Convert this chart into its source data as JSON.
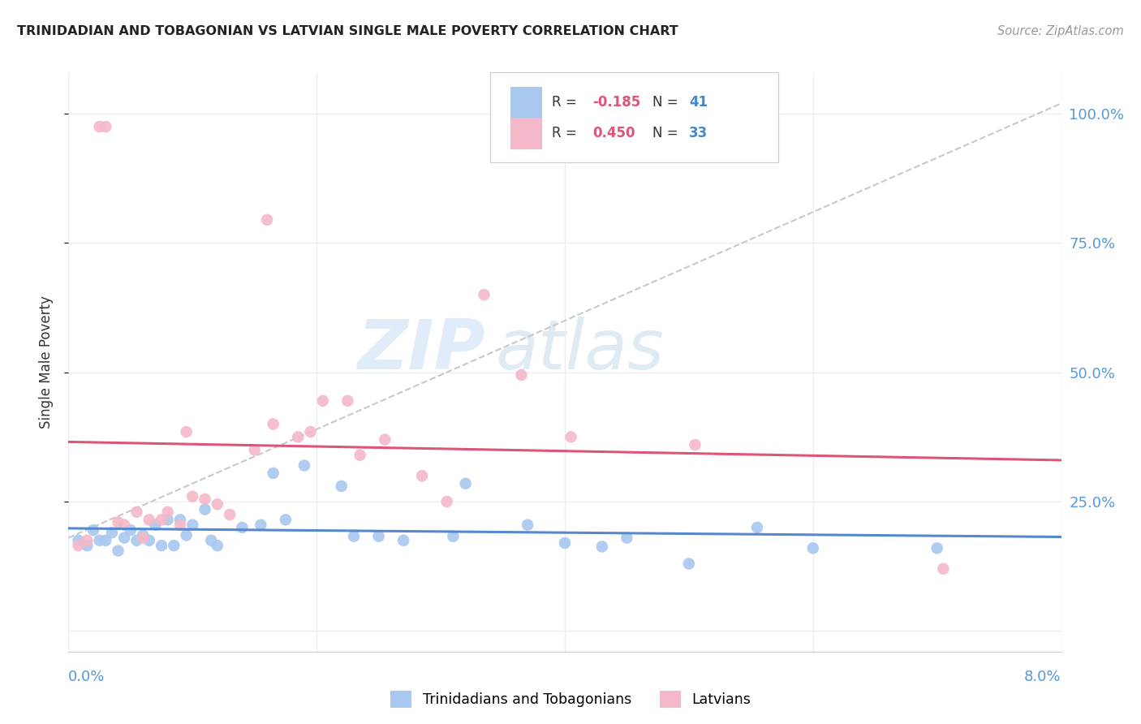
{
  "title": "TRINIDADIAN AND TOBAGONIAN VS LATVIAN SINGLE MALE POVERTY CORRELATION CHART",
  "source": "Source: ZipAtlas.com",
  "ylabel": "Single Male Poverty",
  "xlim": [
    0.0,
    0.08
  ],
  "ylim": [
    -0.04,
    1.08
  ],
  "ytick_values": [
    0.25,
    0.5,
    0.75,
    1.0
  ],
  "ytick_labels": [
    "25.0%",
    "50.0%",
    "75.0%",
    "100.0%"
  ],
  "legend_blue_r": "-0.185",
  "legend_blue_n": "41",
  "legend_pink_r": "0.450",
  "legend_pink_n": "33",
  "legend_label_blue": "Trinidadians and Tobagonians",
  "legend_label_pink": "Latvians",
  "blue_dot_color": "#a8c8f0",
  "pink_dot_color": "#f5b8c8",
  "blue_line_color": "#5588cc",
  "pink_line_color": "#dd5577",
  "diagonal_color": "#c8c8c8",
  "bg_color": "#ffffff",
  "grid_color": "#ececf5",
  "axis_label_color": "#5599dd",
  "text_color": "#333333",
  "blue_x": [
    0.0008,
    0.0015,
    0.002,
    0.0025,
    0.003,
    0.0035,
    0.004,
    0.0045,
    0.005,
    0.0055,
    0.006,
    0.0065,
    0.007,
    0.0075,
    0.008,
    0.0085,
    0.009,
    0.0095,
    0.01,
    0.011,
    0.0115,
    0.012,
    0.014,
    0.0155,
    0.0165,
    0.0175,
    0.019,
    0.022,
    0.023,
    0.025,
    0.027,
    0.031,
    0.032,
    0.037,
    0.04,
    0.043,
    0.045,
    0.05,
    0.0555,
    0.06,
    0.07
  ],
  "blue_y": [
    0.175,
    0.165,
    0.195,
    0.175,
    0.175,
    0.19,
    0.155,
    0.18,
    0.195,
    0.175,
    0.185,
    0.175,
    0.205,
    0.165,
    0.215,
    0.165,
    0.215,
    0.185,
    0.205,
    0.235,
    0.175,
    0.165,
    0.2,
    0.205,
    0.305,
    0.215,
    0.32,
    0.28,
    0.183,
    0.183,
    0.175,
    0.183,
    0.285,
    0.205,
    0.17,
    0.163,
    0.18,
    0.13,
    0.2,
    0.16,
    0.16
  ],
  "pink_x": [
    0.0008,
    0.0015,
    0.0025,
    0.003,
    0.004,
    0.0045,
    0.0055,
    0.006,
    0.0065,
    0.0075,
    0.008,
    0.009,
    0.0095,
    0.01,
    0.011,
    0.012,
    0.013,
    0.015,
    0.016,
    0.0165,
    0.0185,
    0.0195,
    0.0205,
    0.0225,
    0.0235,
    0.0255,
    0.0285,
    0.0305,
    0.0335,
    0.0365,
    0.0405,
    0.0505,
    0.0705
  ],
  "pink_y": [
    0.165,
    0.175,
    0.975,
    0.975,
    0.21,
    0.205,
    0.23,
    0.18,
    0.215,
    0.215,
    0.23,
    0.205,
    0.385,
    0.26,
    0.255,
    0.245,
    0.225,
    0.35,
    0.795,
    0.4,
    0.375,
    0.385,
    0.445,
    0.445,
    0.34,
    0.37,
    0.3,
    0.25,
    0.65,
    0.495,
    0.375,
    0.36,
    0.12
  ]
}
